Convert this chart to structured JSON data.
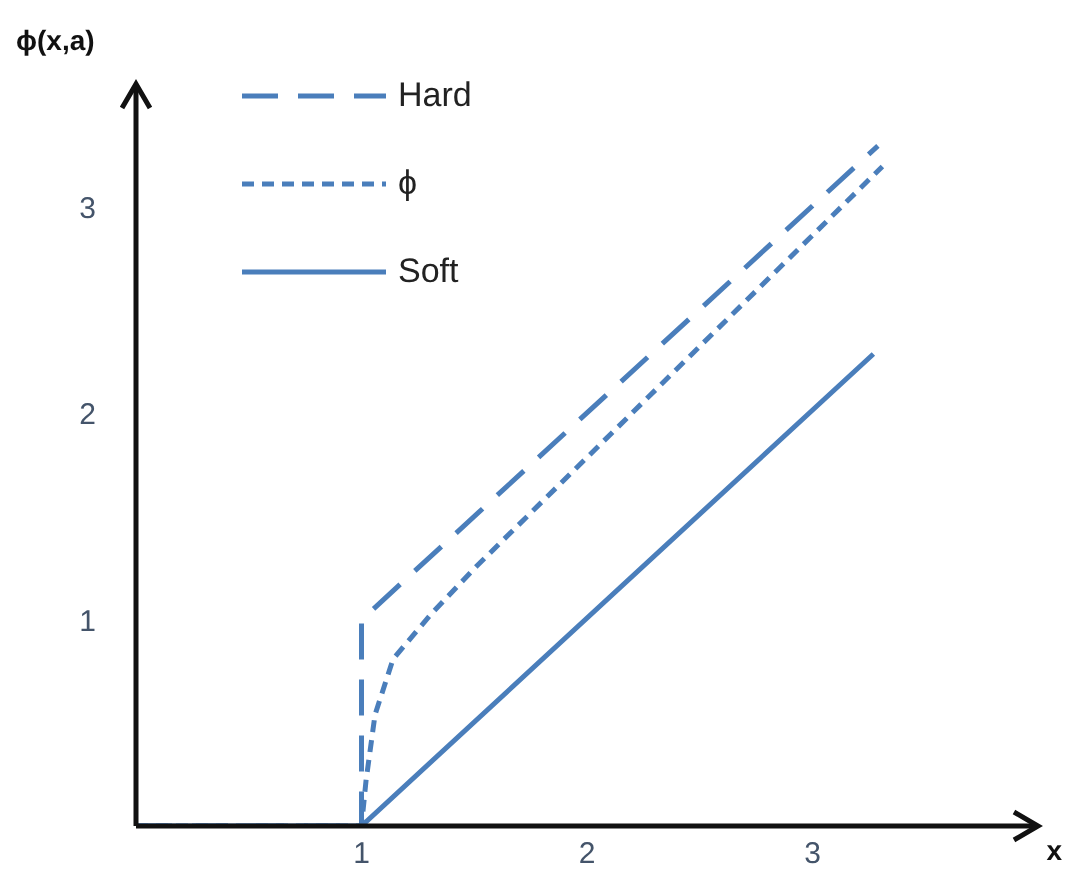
{
  "chart_data": {
    "type": "line",
    "xlabel": "x",
    "ylabel": "ϕ(x,a)",
    "xlim": [
      0,
      4
    ],
    "ylim": [
      0,
      3.6
    ],
    "xticks": [
      1,
      2,
      3
    ],
    "yticks": [
      1,
      2,
      3
    ],
    "grid": false,
    "legend": "top left",
    "marker": "none",
    "series": [
      {
        "name": "Hard",
        "color": "#4a7ebb",
        "line_style": "dashed",
        "x": [
          0,
          1,
          1,
          3.29
        ],
        "values": [
          0,
          0,
          1,
          3.3
        ]
      },
      {
        "name": "ϕ",
        "color": "#4a7ebb",
        "line_style": "dotted",
        "x": [
          0,
          1,
          1.02,
          1.06,
          1.14,
          1.31,
          1.51,
          3.31
        ],
        "values": [
          0,
          0,
          0.22,
          0.54,
          0.81,
          1.03,
          1.26,
          3.2
        ]
      },
      {
        "name": "Soft",
        "color": "#4a7ebb",
        "line_style": "solid",
        "x": [
          0,
          1,
          3.27
        ],
        "values": [
          0,
          0,
          2.29
        ]
      }
    ]
  }
}
